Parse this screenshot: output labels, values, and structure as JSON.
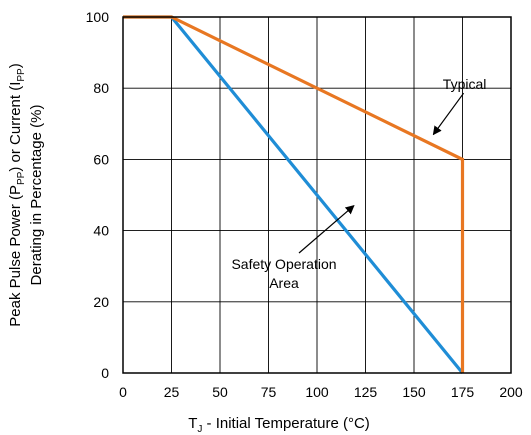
{
  "chart_data": {
    "type": "line",
    "xlabel": {
      "prefix": "T",
      "sub": "J",
      "suffix": " - Initial Temperature (°C)"
    },
    "ylabel": {
      "line1": {
        "a": "Peak Pulse Power (P",
        "sub1": "PP",
        "b": ") or Current (I",
        "sub2": "PP",
        "c": ")"
      },
      "line2": "Derating in Percentage (%)"
    },
    "xlim": [
      0,
      200
    ],
    "ylim": [
      0,
      100
    ],
    "xticks": [
      0,
      25,
      50,
      75,
      100,
      125,
      150,
      175,
      200
    ],
    "yticks": [
      0,
      20,
      40,
      60,
      80,
      100
    ],
    "grid": true,
    "series": [
      {
        "color": "#E87722",
        "x": [
          0,
          25,
          175,
          175
        ],
        "y": [
          100,
          100,
          60,
          0
        ]
      },
      {
        "color": "#1F8DD6",
        "x": [
          0,
          25,
          175
        ],
        "y": [
          100,
          100,
          0
        ]
      }
    ],
    "annotations": [
      {
        "text": "Typical",
        "arrow_to": [
          160,
          67
        ],
        "label_at": [
          190,
          80
        ]
      },
      {
        "text": "Safety Operation",
        "text2": "Area",
        "arrow_to": [
          119,
          47
        ],
        "label_at": [
          110,
          30
        ]
      }
    ]
  }
}
